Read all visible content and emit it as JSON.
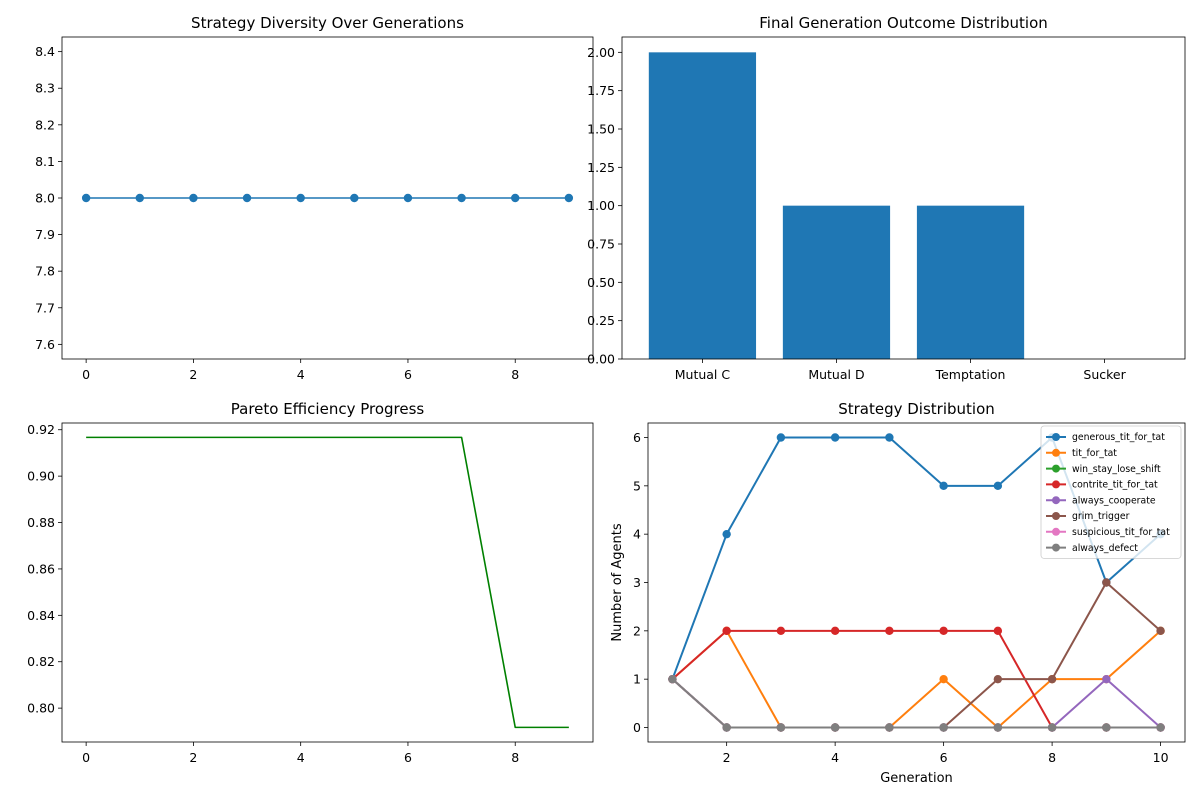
{
  "colors": {
    "blue": "#1f77b4",
    "orange": "#ff7f0e",
    "green": "#2ca02c",
    "red": "#d62728",
    "purple": "#9467bd",
    "brown": "#8c564b",
    "pink": "#e377c2",
    "gray": "#7f7f7f",
    "pareto_line": "#008000"
  },
  "chart_data": [
    {
      "type": "line",
      "title": "Strategy Diversity Over Generations",
      "xlabel": "",
      "ylabel": "",
      "x": [
        0,
        1,
        2,
        3,
        4,
        5,
        6,
        7,
        8,
        9
      ],
      "series": [
        {
          "values": [
            8,
            8,
            8,
            8,
            8,
            8,
            8,
            8,
            8,
            8
          ],
          "color": "#1f77b4",
          "marker": "circle"
        }
      ],
      "xlim": [
        -0.45,
        9.45
      ],
      "ylim": [
        7.56,
        8.44
      ],
      "xticks": [
        "0",
        "2",
        "4",
        "6",
        "8"
      ],
      "yticks": [
        "7.6",
        "7.7",
        "7.8",
        "7.9",
        "8.0",
        "8.1",
        "8.2",
        "8.3",
        "8.4"
      ],
      "grid": false
    },
    {
      "type": "bar",
      "title": "Final Generation Outcome Distribution",
      "xlabel": "",
      "ylabel": "",
      "categories": [
        "Mutual C",
        "Mutual D",
        "Temptation",
        "Sucker"
      ],
      "values": [
        2,
        1,
        1,
        0
      ],
      "color": "#1f77b4",
      "ylim": [
        0,
        2.1
      ],
      "yticks": [
        "0.00",
        "0.25",
        "0.50",
        "0.75",
        "1.00",
        "1.25",
        "1.50",
        "1.75",
        "2.00"
      ],
      "grid": false
    },
    {
      "type": "line",
      "title": "Pareto Efficiency Progress",
      "xlabel": "",
      "ylabel": "",
      "x": [
        0,
        1,
        2,
        3,
        4,
        5,
        6,
        7,
        8,
        9
      ],
      "series": [
        {
          "values": [
            0.9167,
            0.9167,
            0.9167,
            0.9167,
            0.9167,
            0.9167,
            0.9167,
            0.9167,
            0.7917,
            0.7917
          ],
          "color": "#008000",
          "marker": "none"
        }
      ],
      "xlim": [
        -0.45,
        9.45
      ],
      "ylim": [
        0.7854,
        0.9229
      ],
      "xticks": [
        "0",
        "2",
        "4",
        "6",
        "8"
      ],
      "yticks": [
        "0.80",
        "0.82",
        "0.84",
        "0.86",
        "0.88",
        "0.90",
        "0.92"
      ],
      "grid": false
    },
    {
      "type": "line",
      "title": "Strategy Distribution",
      "xlabel": "Generation",
      "ylabel": "Number of Agents",
      "x": [
        1,
        2,
        3,
        4,
        5,
        6,
        7,
        8,
        9,
        10
      ],
      "series": [
        {
          "name": "generous_tit_for_tat",
          "color": "#1f77b4",
          "values": [
            1,
            4,
            6,
            6,
            6,
            5,
            5,
            6,
            3,
            4
          ]
        },
        {
          "name": "tit_for_tat",
          "color": "#ff7f0e",
          "values": [
            1,
            2,
            0,
            0,
            0,
            1,
            0,
            1,
            1,
            2
          ]
        },
        {
          "name": "win_stay_lose_shift",
          "color": "#2ca02c",
          "values": [
            1,
            0,
            0,
            0,
            0,
            0,
            0,
            0,
            0,
            0
          ]
        },
        {
          "name": "contrite_tit_for_tat",
          "color": "#d62728",
          "values": [
            1,
            2,
            2,
            2,
            2,
            2,
            2,
            0,
            0,
            0
          ]
        },
        {
          "name": "always_cooperate",
          "color": "#9467bd",
          "values": [
            1,
            0,
            0,
            0,
            0,
            0,
            0,
            0,
            1,
            0
          ]
        },
        {
          "name": "grim_trigger",
          "color": "#8c564b",
          "values": [
            1,
            0,
            0,
            0,
            0,
            0,
            1,
            1,
            3,
            2
          ]
        },
        {
          "name": "suspicious_tit_for_tat",
          "color": "#e377c2",
          "values": [
            1,
            0,
            0,
            0,
            0,
            0,
            0,
            0,
            0,
            0
          ]
        },
        {
          "name": "always_defect",
          "color": "#7f7f7f",
          "values": [
            1,
            0,
            0,
            0,
            0,
            0,
            0,
            0,
            0,
            0
          ]
        }
      ],
      "xlim": [
        0.55,
        10.45
      ],
      "ylim": [
        -0.3,
        6.3
      ],
      "xticks": [
        "2",
        "4",
        "6",
        "8",
        "10"
      ],
      "yticks": [
        "0",
        "1",
        "2",
        "3",
        "4",
        "5",
        "6"
      ],
      "legend": "top-right",
      "grid": false
    }
  ]
}
